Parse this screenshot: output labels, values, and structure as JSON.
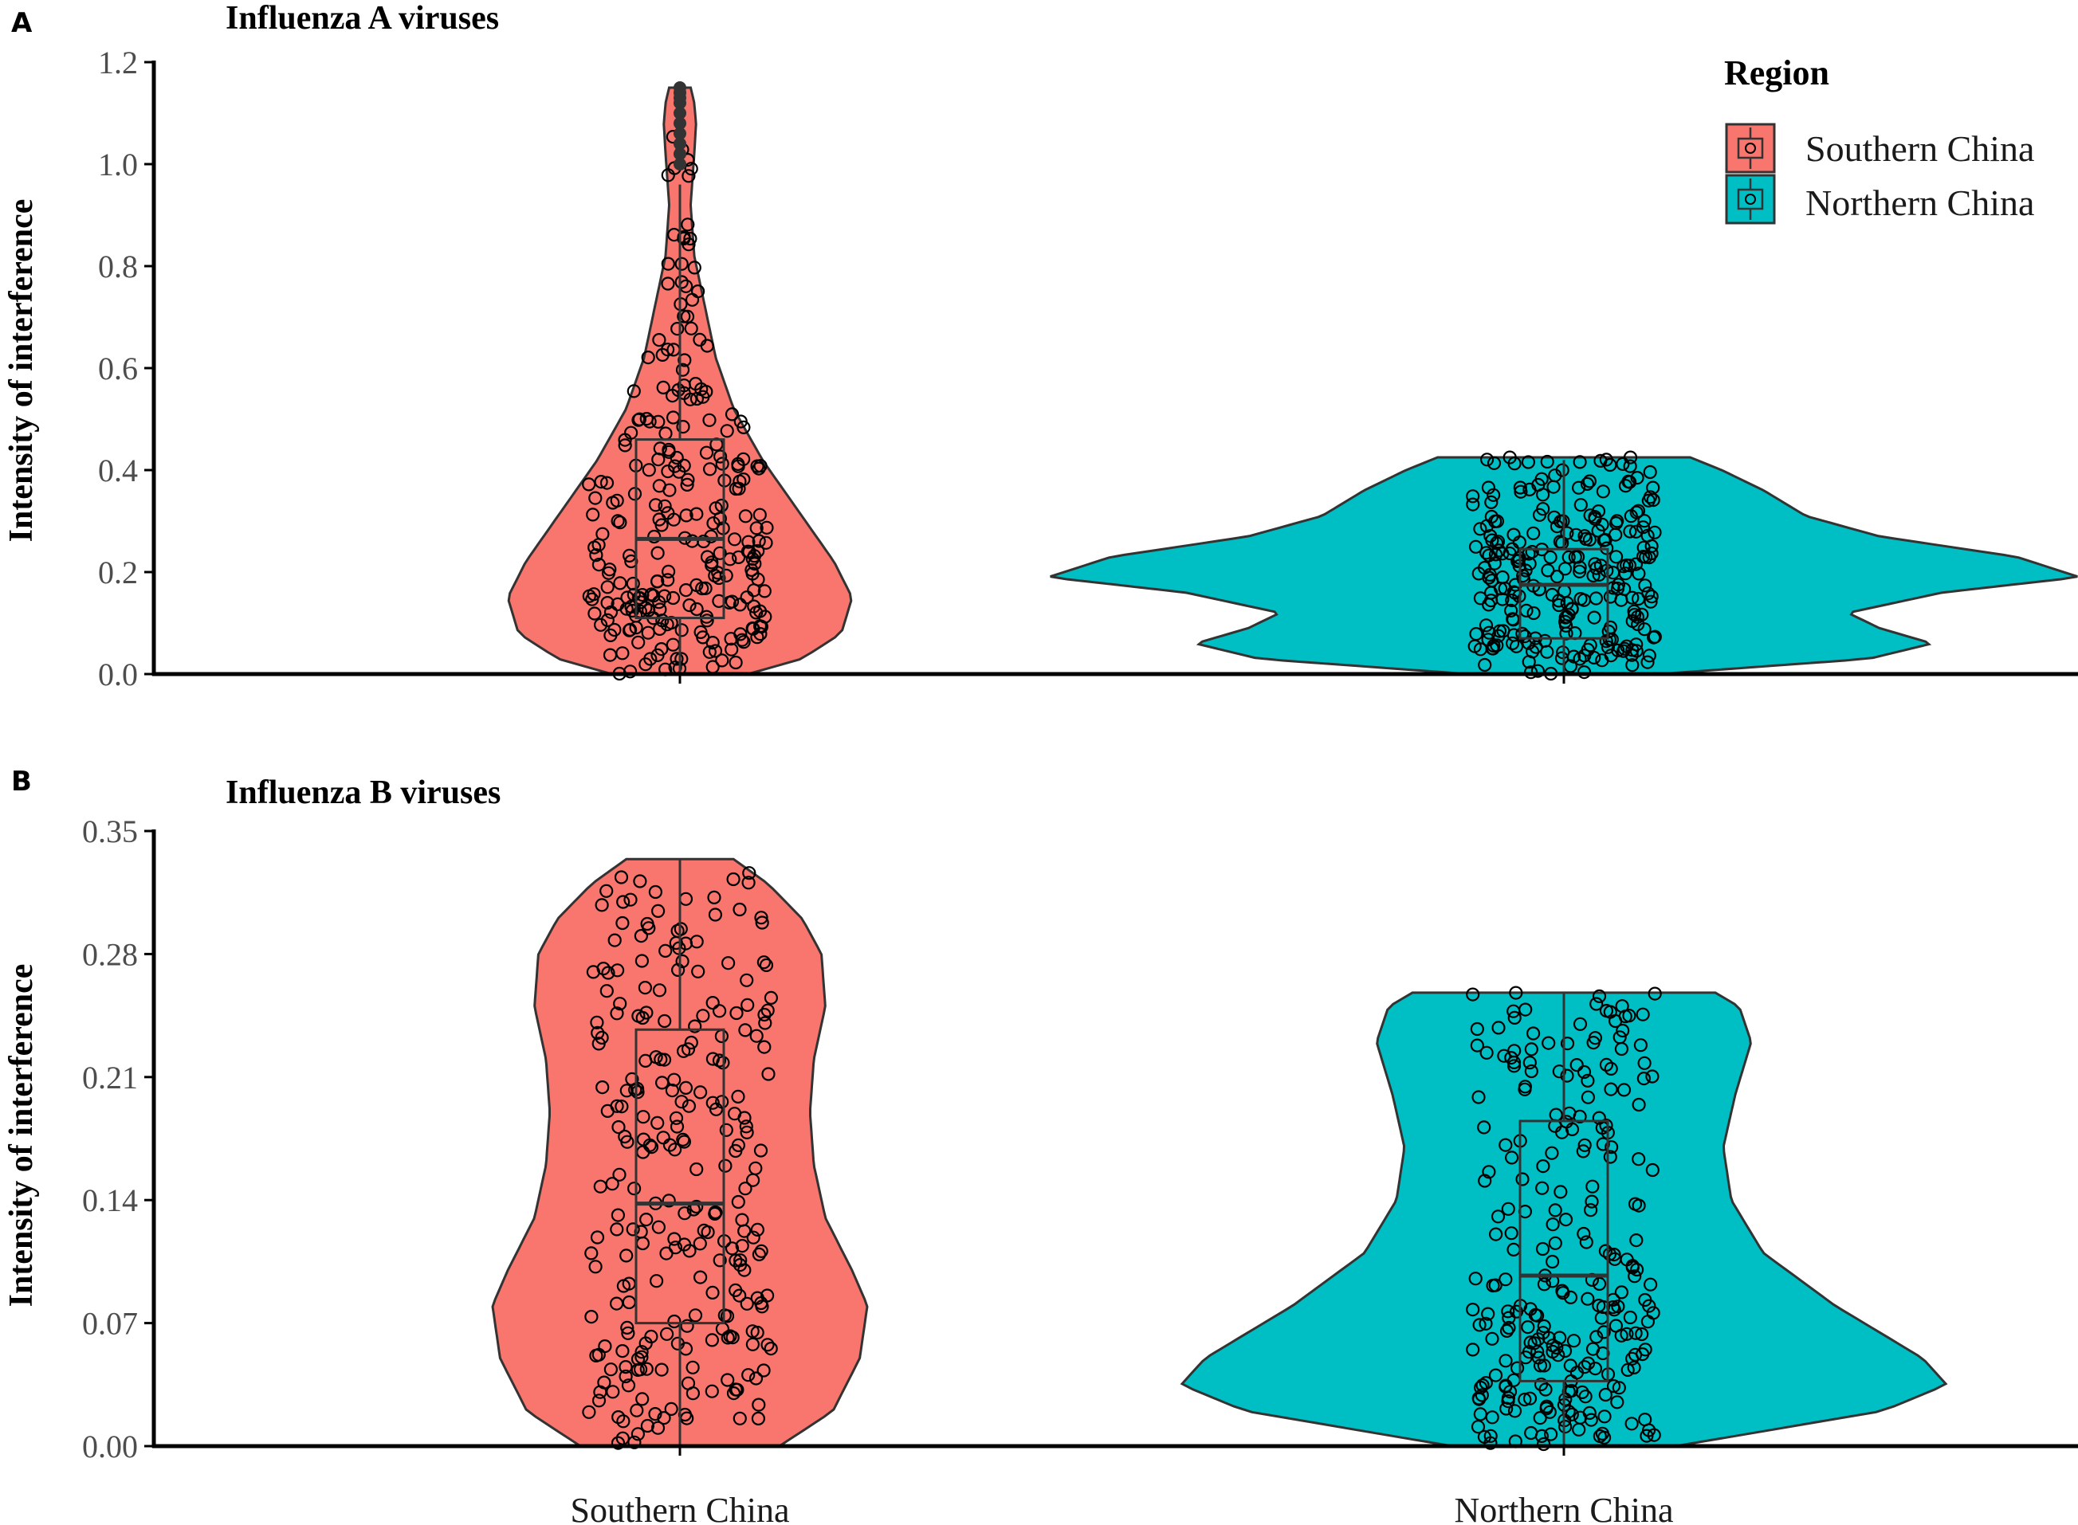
{
  "colors": {
    "southern": "#F8766D",
    "northern": "#00BFC4",
    "outline": "#333333",
    "point_stroke": "#000000"
  },
  "legend": {
    "title": "Region",
    "items": [
      "Southern China",
      "Northern China"
    ]
  },
  "chart_data": [
    {
      "type": "violin",
      "panel_letter": "A",
      "title": "Influenza A viruses",
      "ylabel": "Intensity of interference",
      "categories": [
        "Southern China",
        "Northern China"
      ],
      "ylim": [
        0,
        1.2
      ],
      "yticks": [
        0.0,
        0.2,
        0.4,
        0.6,
        0.8,
        1.0,
        1.2
      ],
      "ytick_labels": [
        "0.0",
        "0.2",
        "0.4",
        "0.6",
        "0.8",
        "1.0",
        "1.2"
      ],
      "series": [
        {
          "name": "Southern China",
          "min": 0.0,
          "q1": 0.11,
          "median": 0.265,
          "q3": 0.46,
          "whisker_high": 0.96,
          "max": 1.15,
          "outliers": [
            1.15,
            1.14,
            1.13,
            1.12,
            1.1,
            1.08,
            1.06,
            1.04,
            1.02,
            1.0
          ],
          "violin_profile": [
            [
              0.0,
              0.38
            ],
            [
              0.03,
              0.68
            ],
            [
              0.08,
              0.9
            ],
            [
              0.15,
              0.96
            ],
            [
              0.22,
              0.86
            ],
            [
              0.32,
              0.66
            ],
            [
              0.42,
              0.46
            ],
            [
              0.52,
              0.3
            ],
            [
              0.62,
              0.2
            ],
            [
              0.72,
              0.14
            ],
            [
              0.82,
              0.08
            ],
            [
              0.92,
              0.06
            ],
            [
              1.02,
              0.08
            ],
            [
              1.08,
              0.09
            ],
            [
              1.12,
              0.08
            ],
            [
              1.15,
              0.06
            ]
          ]
        },
        {
          "name": "Northern China",
          "min": 0.0,
          "q1": 0.07,
          "median": 0.175,
          "q3": 0.245,
          "whisker_high": 0.42,
          "max": 0.425,
          "outliers": [],
          "violin_profile": [
            [
              0.0,
              0.18
            ],
            [
              0.03,
              0.58
            ],
            [
              0.06,
              0.7
            ],
            [
              0.09,
              0.6
            ],
            [
              0.12,
              0.54
            ],
            [
              0.16,
              0.72
            ],
            [
              0.19,
              0.98
            ],
            [
              0.23,
              0.86
            ],
            [
              0.27,
              0.6
            ],
            [
              0.31,
              0.46
            ],
            [
              0.36,
              0.38
            ],
            [
              0.4,
              0.3
            ],
            [
              0.425,
              0.24
            ]
          ]
        }
      ]
    },
    {
      "type": "violin",
      "panel_letter": "B",
      "title": "Influenza B viruses",
      "ylabel": "Intensity of  interference",
      "categories": [
        "Southern China",
        "Northern China"
      ],
      "ylim": [
        0,
        0.35
      ],
      "yticks": [
        0.0,
        0.07,
        0.14,
        0.21,
        0.28,
        0.35
      ],
      "ytick_labels": [
        "0.00",
        "0.07",
        "0.14",
        "0.21",
        "0.28",
        "0.35"
      ],
      "series": [
        {
          "name": "Southern China",
          "min": 0.0,
          "q1": 0.07,
          "median": 0.138,
          "q3": 0.237,
          "whisker_high": 0.334,
          "max": 0.334,
          "outliers": [],
          "violin_profile": [
            [
              0.0,
              0.52
            ],
            [
              0.02,
              0.8
            ],
            [
              0.05,
              0.94
            ],
            [
              0.08,
              0.98
            ],
            [
              0.1,
              0.9
            ],
            [
              0.13,
              0.76
            ],
            [
              0.16,
              0.7
            ],
            [
              0.19,
              0.68
            ],
            [
              0.22,
              0.7
            ],
            [
              0.25,
              0.76
            ],
            [
              0.28,
              0.74
            ],
            [
              0.3,
              0.64
            ],
            [
              0.32,
              0.46
            ],
            [
              0.334,
              0.28
            ]
          ]
        },
        {
          "name": "Northern China",
          "min": 0.0,
          "q1": 0.037,
          "median": 0.097,
          "q3": 0.185,
          "whisker_high": 0.258,
          "max": 0.258,
          "outliers": [],
          "violin_profile": [
            [
              0.0,
              0.28
            ],
            [
              0.02,
              0.8
            ],
            [
              0.035,
              0.96
            ],
            [
              0.05,
              0.9
            ],
            [
              0.08,
              0.68
            ],
            [
              0.11,
              0.5
            ],
            [
              0.14,
              0.42
            ],
            [
              0.17,
              0.4
            ],
            [
              0.2,
              0.43
            ],
            [
              0.23,
              0.47
            ],
            [
              0.25,
              0.44
            ],
            [
              0.258,
              0.38
            ]
          ]
        }
      ]
    }
  ]
}
